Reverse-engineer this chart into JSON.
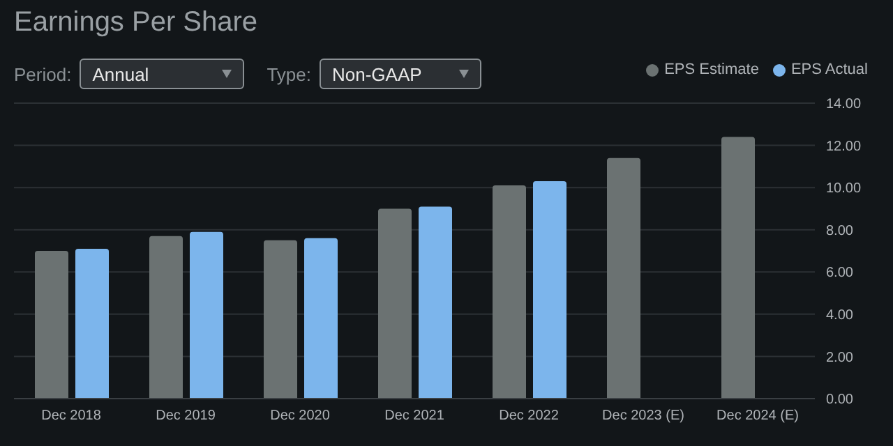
{
  "chart_data": {
    "type": "bar",
    "title": "Earnings Per Share",
    "annotations": [
      "Period:",
      "Annual",
      "Type:",
      "Non-GAAP"
    ],
    "categories": [
      "Dec 2018",
      "Dec 2019",
      "Dec 2020",
      "Dec 2021",
      "Dec 2022",
      "Dec 2023 (E)",
      "Dec 2024 (E)"
    ],
    "series": [
      {
        "name": "EPS Estimate",
        "color": "#6b7272",
        "values": [
          7.0,
          7.7,
          7.5,
          9.0,
          10.1,
          11.4,
          12.4
        ]
      },
      {
        "name": "EPS Actual",
        "color": "#7cb5ec",
        "values": [
          7.1,
          7.9,
          7.6,
          9.1,
          10.3,
          null,
          null
        ]
      }
    ],
    "ylim": [
      0,
      14
    ],
    "yticks": [
      {
        "value": 0,
        "label": "0.00"
      },
      {
        "value": 2,
        "label": "2.00"
      },
      {
        "value": 4,
        "label": "4.00"
      },
      {
        "value": 6,
        "label": "6.00"
      },
      {
        "value": 8,
        "label": "8.00"
      },
      {
        "value": 10,
        "label": "10.00"
      },
      {
        "value": 12,
        "label": "12.00"
      },
      {
        "value": 14,
        "label": "14.00"
      }
    ],
    "grid": "y",
    "legend": "top right"
  }
}
